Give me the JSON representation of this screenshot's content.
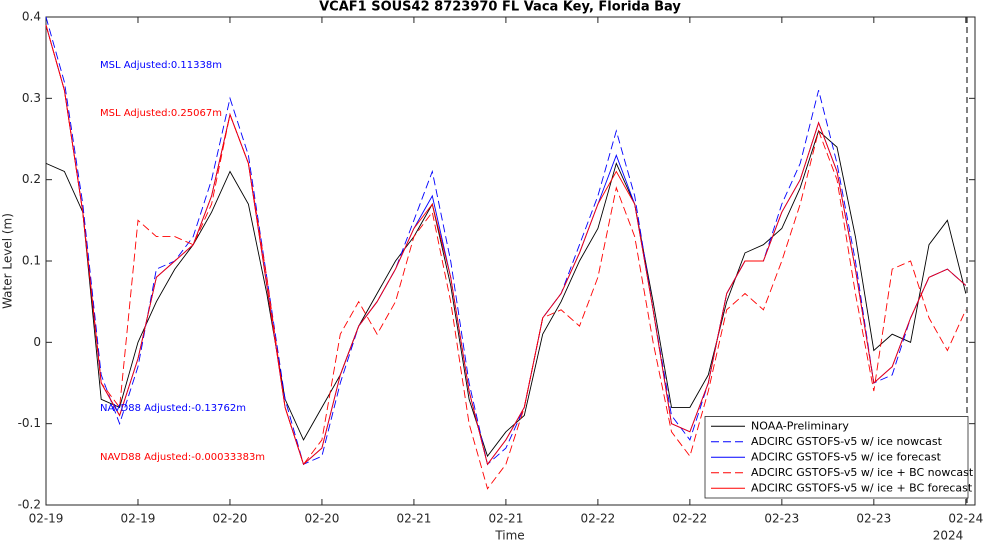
{
  "chart_data": {
    "type": "line",
    "title": "VCAF1 SOUS42 8723970 FL Vaca Key, Florida Bay",
    "xlabel": "Time",
    "ylabel": "Water Level (m)",
    "x_year_label": "2024",
    "x": [
      0,
      0.1,
      0.2,
      0.3,
      0.4,
      0.5,
      0.6,
      0.7,
      0.8,
      0.9,
      1.0,
      1.1,
      1.2,
      1.3,
      1.4,
      1.5,
      1.6,
      1.7,
      1.8,
      1.9,
      2.0,
      2.1,
      2.2,
      2.3,
      2.4,
      2.5,
      2.6,
      2.7,
      2.8,
      2.9,
      3.0,
      3.1,
      3.2,
      3.3,
      3.4,
      3.5,
      3.6,
      3.7,
      3.8,
      3.9,
      4.0,
      4.1,
      4.2,
      4.3,
      4.4,
      4.5,
      4.6,
      4.7,
      4.8,
      4.9,
      5.0
    ],
    "xlim": [
      0,
      5.05
    ],
    "xticks": [
      {
        "value": 0,
        "label": "02-19"
      },
      {
        "value": 0.5,
        "label": "02-19"
      },
      {
        "value": 1.0,
        "label": "02-20"
      },
      {
        "value": 1.5,
        "label": "02-20"
      },
      {
        "value": 2.0,
        "label": "02-21"
      },
      {
        "value": 2.5,
        "label": "02-21"
      },
      {
        "value": 3.0,
        "label": "02-22"
      },
      {
        "value": 3.5,
        "label": "02-22"
      },
      {
        "value": 4.0,
        "label": "02-23"
      },
      {
        "value": 4.5,
        "label": "02-23"
      },
      {
        "value": 5.0,
        "label": "02-24"
      }
    ],
    "ylim": [
      -0.2,
      0.4
    ],
    "yticks": [
      -0.2,
      -0.1,
      0,
      0.1,
      0.2,
      0.3,
      0.4
    ],
    "grid": false,
    "legend": "lower right",
    "series": [
      {
        "name": "NOAA-Preliminary",
        "color": "#000000",
        "linestyle": "solid",
        "values": [
          0.22,
          0.21,
          0.16,
          -0.07,
          -0.08,
          0.0,
          0.05,
          0.09,
          0.12,
          0.16,
          0.21,
          0.17,
          0.06,
          -0.07,
          -0.12,
          -0.08,
          -0.04,
          0.02,
          0.06,
          0.1,
          0.13,
          0.17,
          0.07,
          -0.07,
          -0.14,
          -0.11,
          -0.09,
          0.01,
          0.05,
          0.1,
          0.14,
          0.22,
          0.17,
          0.05,
          -0.08,
          -0.08,
          -0.04,
          0.05,
          0.11,
          0.12,
          0.14,
          0.19,
          0.26,
          0.24,
          0.13,
          -0.01,
          0.01,
          0.0,
          0.12,
          0.15,
          0.06
        ]
      },
      {
        "name": "ADCIRC GSTOFS-v5 w/ ice nowcast",
        "color": "#0000ff",
        "linestyle": "dashed",
        "values": [
          0.4,
          0.32,
          0.17,
          -0.04,
          -0.1,
          -0.03,
          0.09,
          0.1,
          0.13,
          0.2,
          0.3,
          0.23,
          0.08,
          -0.07,
          -0.15,
          -0.14,
          -0.05,
          0.02,
          0.05,
          0.09,
          0.15,
          0.21,
          0.1,
          -0.05,
          -0.15,
          -0.13,
          -0.08,
          0.03,
          0.06,
          0.12,
          0.18,
          0.26,
          0.18,
          0.04,
          -0.09,
          -0.12,
          -0.05,
          0.06,
          0.1,
          0.1,
          0.17,
          0.22,
          0.31,
          0.22,
          0.1,
          -0.05,
          -0.04,
          0.03,
          0.08,
          0.09,
          0.07
        ]
      },
      {
        "name": "ADCIRC GSTOFS-v5 w/ ice forecast",
        "color": "#0000ff",
        "linestyle": "solid",
        "values": [
          0.39,
          0.31,
          0.16,
          -0.05,
          -0.09,
          -0.02,
          0.08,
          0.1,
          0.12,
          0.18,
          0.28,
          0.22,
          0.07,
          -0.08,
          -0.15,
          -0.13,
          -0.04,
          0.02,
          0.05,
          0.09,
          0.14,
          0.18,
          0.08,
          -0.06,
          -0.15,
          -0.12,
          -0.08,
          0.03,
          0.06,
          0.11,
          0.17,
          0.23,
          0.17,
          0.04,
          -0.1,
          -0.11,
          -0.05,
          0.06,
          0.1,
          0.1,
          0.16,
          0.2,
          0.27,
          0.21,
          0.09,
          -0.05,
          -0.03,
          0.03,
          0.08,
          0.09,
          0.07
        ]
      },
      {
        "name": "ADCIRC GSTOFS-v5 w/ ice + BC nowcast",
        "color": "#ff0000",
        "linestyle": "dashed",
        "values": [
          0.39,
          0.31,
          0.16,
          -0.05,
          -0.08,
          0.15,
          0.13,
          0.13,
          0.12,
          0.17,
          0.28,
          0.22,
          0.08,
          -0.08,
          -0.15,
          -0.12,
          0.01,
          0.05,
          0.01,
          0.05,
          0.13,
          0.16,
          0.05,
          -0.1,
          -0.18,
          -0.15,
          -0.08,
          0.03,
          0.04,
          0.02,
          0.08,
          0.19,
          0.13,
          0.0,
          -0.11,
          -0.14,
          -0.06,
          0.04,
          0.06,
          0.04,
          0.1,
          0.17,
          0.26,
          0.2,
          0.06,
          -0.06,
          0.09,
          0.1,
          0.03,
          -0.01,
          0.04
        ]
      },
      {
        "name": "ADCIRC GSTOFS-v5 w/ ice + BC forecast",
        "color": "#ff0000",
        "linestyle": "solid",
        "values": [
          0.39,
          0.31,
          0.16,
          -0.05,
          -0.09,
          -0.02,
          0.08,
          0.1,
          0.12,
          0.18,
          0.28,
          0.22,
          0.07,
          -0.08,
          -0.15,
          -0.13,
          -0.04,
          0.02,
          0.05,
          0.09,
          0.14,
          0.17,
          0.08,
          -0.06,
          -0.15,
          -0.12,
          -0.08,
          0.03,
          0.06,
          0.11,
          0.17,
          0.21,
          0.17,
          0.04,
          -0.1,
          -0.11,
          -0.05,
          0.06,
          0.1,
          0.1,
          0.16,
          0.2,
          0.27,
          0.21,
          0.09,
          -0.05,
          -0.03,
          0.03,
          0.08,
          0.09,
          0.07
        ]
      }
    ],
    "annotations": [
      {
        "text": "MSL Adjusted:0.11338m",
        "color": "#0000ff"
      },
      {
        "text": "MSL Adjusted:0.25067m",
        "color": "#ff0000"
      },
      {
        "text": "NAVD88 Adjusted:-0.13762m",
        "color": "#0000ff"
      },
      {
        "text": "NAVD88 Adjusted:-0.00033383m",
        "color": "#ff0000"
      }
    ]
  }
}
